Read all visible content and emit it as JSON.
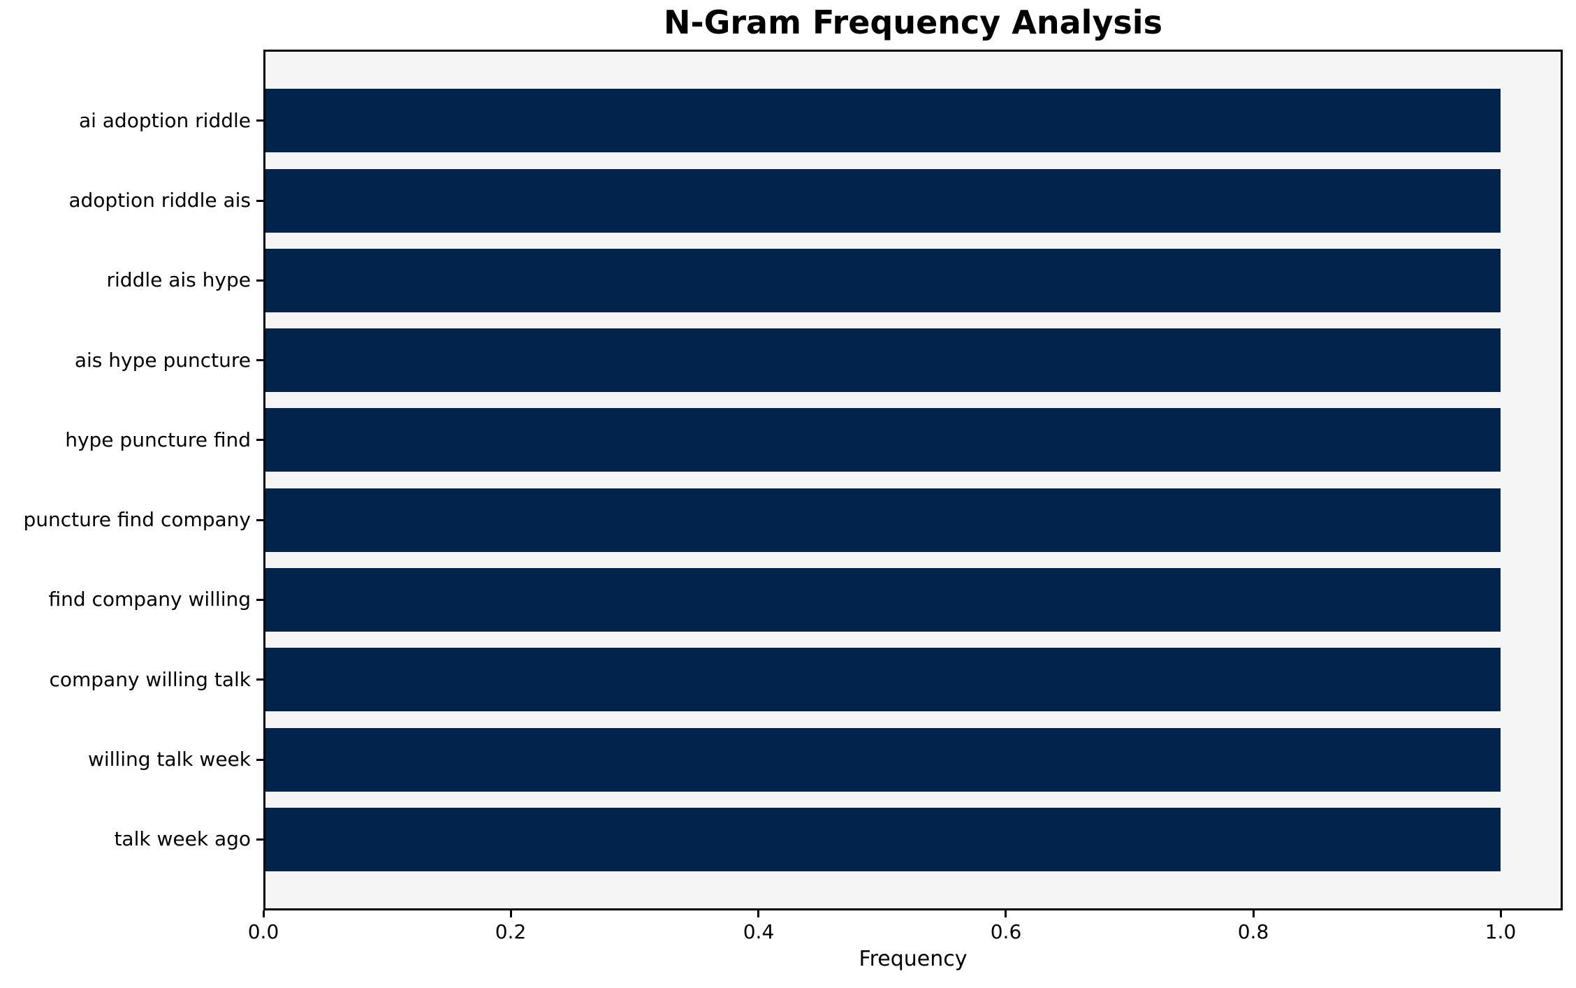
{
  "chart_data": {
    "type": "bar",
    "orientation": "horizontal",
    "title": "N-Gram Frequency Analysis",
    "xlabel": "Frequency",
    "ylabel": "",
    "categories": [
      "ai adoption riddle",
      "adoption riddle ais",
      "riddle ais hype",
      "ais hype puncture",
      "hype puncture find",
      "puncture find company",
      "find company willing",
      "company willing talk",
      "willing talk week",
      "talk week ago"
    ],
    "values": [
      1.0,
      1.0,
      1.0,
      1.0,
      1.0,
      1.0,
      1.0,
      1.0,
      1.0,
      1.0
    ],
    "xlim": [
      0,
      1.05
    ],
    "xticks": [
      0.0,
      0.2,
      0.4,
      0.6,
      0.8,
      1.0
    ],
    "xtick_labels": [
      "0.0",
      "0.2",
      "0.4",
      "0.6",
      "0.8",
      "1.0"
    ],
    "grid": false,
    "legend": null,
    "colors": {
      "bar": "#02234c",
      "plot_background": "#f5f5f5",
      "figure_background": "#ffffff",
      "spine": "#000000",
      "text": "#000000"
    }
  }
}
